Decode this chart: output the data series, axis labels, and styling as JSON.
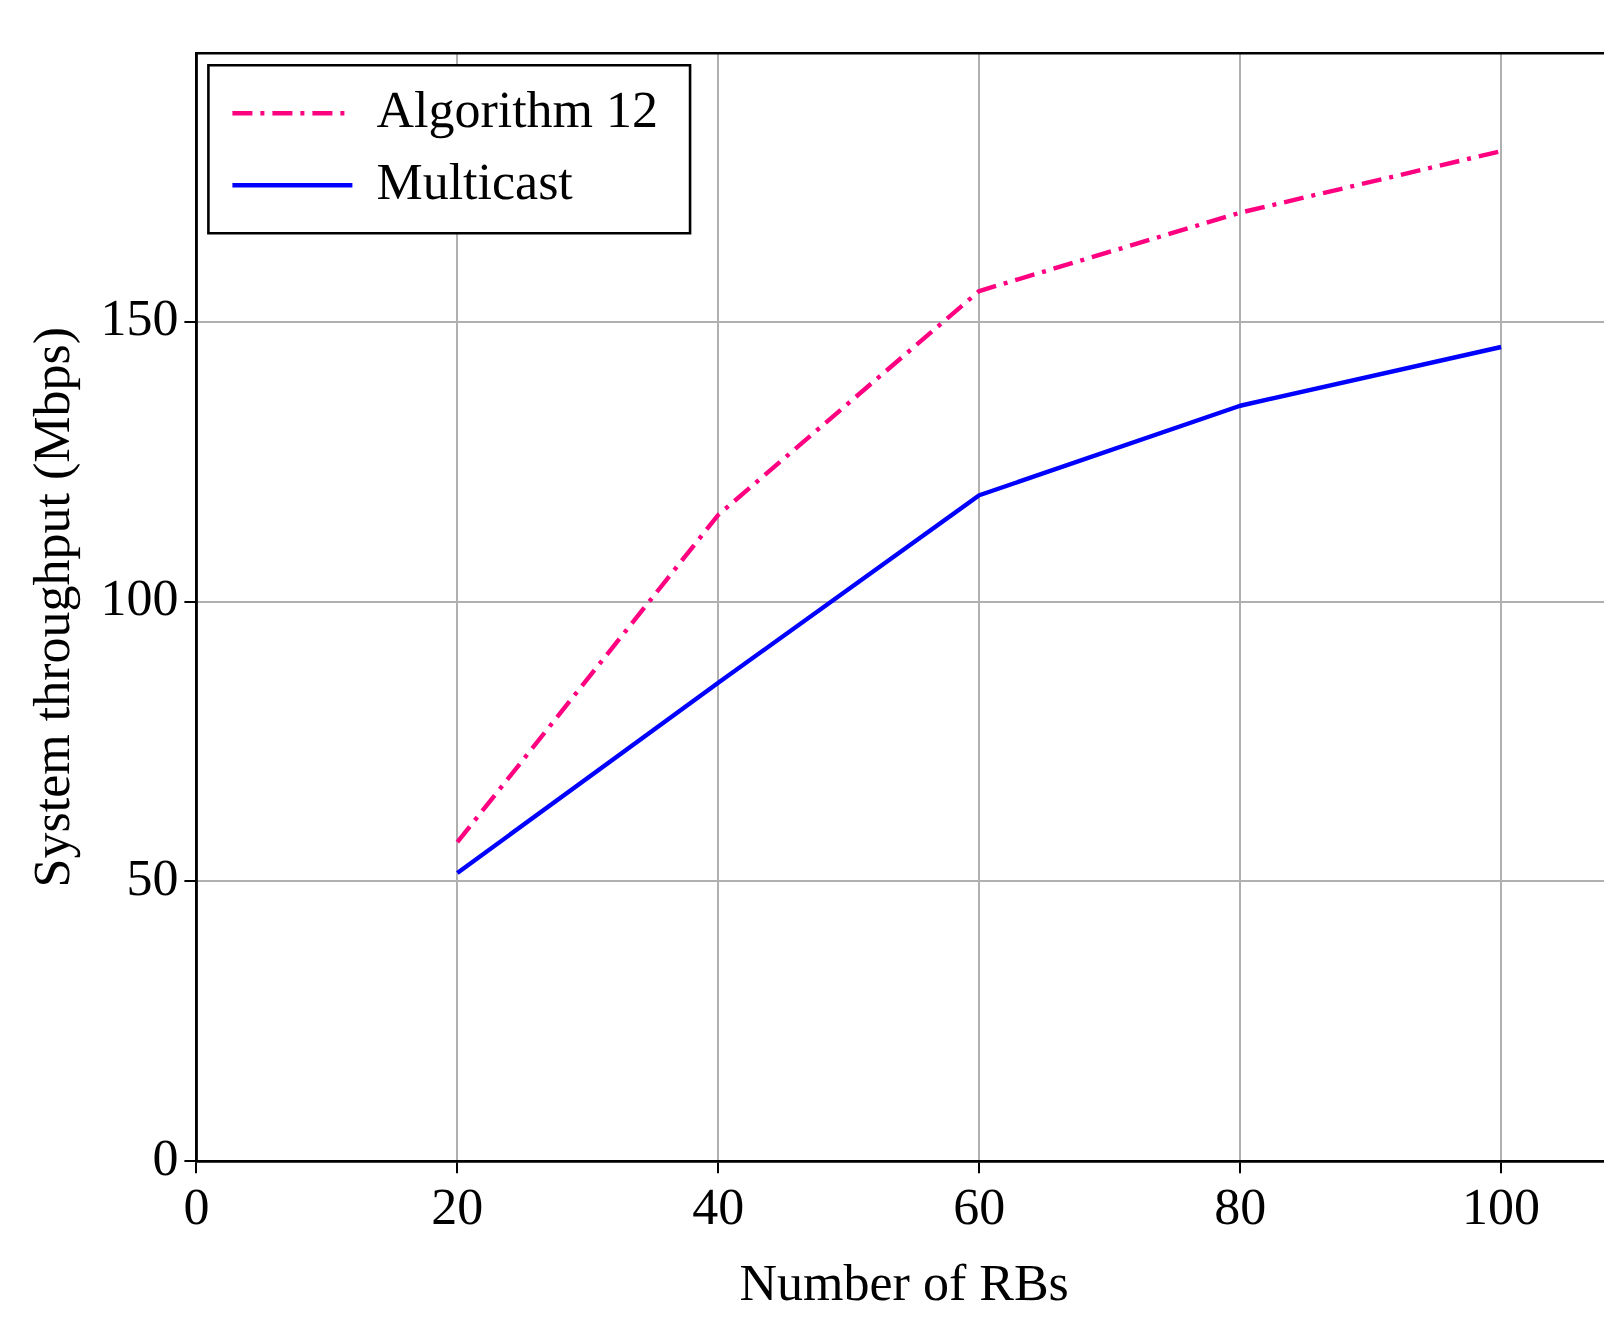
{
  "chart_data": {
    "type": "line",
    "xlabel": "Number of RBs",
    "ylabel": "System throughput (Mbps)",
    "x": [
      20,
      40,
      60,
      80,
      100
    ],
    "series": [
      {
        "name": "Algorithm 12",
        "color": "#ff0080",
        "line_style": "dashed",
        "values": [
          57,
          115.5,
          155.5,
          169.5,
          180.5
        ]
      },
      {
        "name": "Multicast",
        "color": "#0000ff",
        "line_style": "solid",
        "values": [
          51.5,
          85.5,
          119,
          135,
          145.5
        ]
      }
    ],
    "xlim": [
      0,
      108.5
    ],
    "ylim": [
      0,
      198
    ],
    "xticks": [
      0,
      20,
      40,
      60,
      80,
      100
    ],
    "yticks": [
      0,
      50,
      100,
      150
    ],
    "grid": true,
    "legend": "top left",
    "marker": "none"
  }
}
